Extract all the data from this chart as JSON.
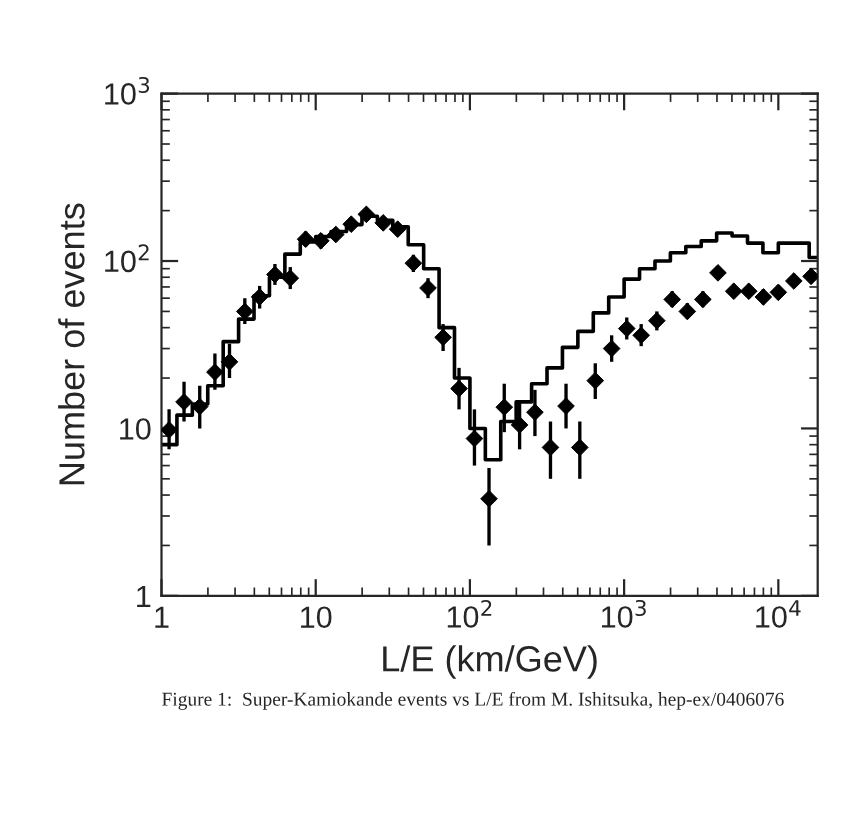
{
  "chart_data": {
    "type": "scatter",
    "xlabel": "L/E (km/GeV)",
    "ylabel": "Number of events",
    "log": "xy",
    "xlim": [
      1,
      18000
    ],
    "ylim": [
      1,
      1000
    ],
    "xticks": [
      1,
      10,
      {
        "value": 100,
        "label": "10$^{2}$"
      },
      {
        "value": 1000,
        "label": "10$^{3}$"
      },
      {
        "value": 10000,
        "label": "10$^{4}$"
      }
    ],
    "yticks": [
      1,
      10,
      {
        "value": 100,
        "label": "10$^{2}$"
      },
      {
        "value": 1000,
        "label": "10$^{3}$"
      }
    ],
    "marker": "diamond",
    "grid": false,
    "legend": false,
    "series": [
      {
        "color": "#000000",
        "x": [
          1.12,
          1.4,
          1.77,
          2.22,
          2.76,
          3.47,
          4.33,
          5.44,
          6.84,
          8.6,
          10.8,
          13.5,
          17,
          21.3,
          27.4,
          34,
          43,
          53.5,
          67,
          85,
          107,
          133,
          167,
          210,
          264,
          333,
          420,
          516,
          650,
          830,
          1040,
          1290,
          1630,
          2050,
          2570,
          3240,
          4060,
          5140,
          6430,
          8000,
          10000,
          12600,
          16300
        ],
        "values": [
          9.8,
          14.4,
          13.5,
          21.7,
          25,
          50,
          61,
          83,
          79,
          135,
          132,
          144,
          166,
          190,
          169,
          155,
          97,
          69,
          35,
          17.3,
          8.7,
          3.8,
          13.4,
          10.5,
          12.5,
          7.7,
          13.6,
          7.7,
          19.3,
          30,
          39.5,
          36,
          44,
          59,
          50,
          59,
          85,
          66,
          66,
          61,
          65,
          76,
          81
        ],
        "errors": [
          [
            7.5,
            13
          ],
          [
            11,
            19
          ],
          [
            10,
            18
          ],
          [
            17,
            28
          ],
          [
            20,
            32
          ],
          [
            42,
            60
          ],
          [
            52,
            71
          ],
          [
            72,
            96
          ],
          [
            68,
            92
          ],
          [
            122,
            150
          ],
          [
            119,
            146
          ],
          [
            131,
            158
          ],
          [
            152,
            181
          ],
          [
            175,
            206
          ],
          [
            155,
            184
          ],
          [
            142,
            169
          ],
          [
            86,
            109
          ],
          [
            60,
            79
          ],
          [
            29,
            42
          ],
          [
            13,
            23
          ],
          [
            6,
            13
          ],
          [
            2,
            5.8
          ],
          [
            9.5,
            18.5
          ],
          [
            7.5,
            14.5
          ],
          [
            9,
            17
          ],
          [
            5,
            11
          ],
          [
            10,
            18.5
          ],
          [
            5,
            11
          ],
          [
            15,
            24.5
          ],
          [
            25,
            36
          ],
          [
            34,
            46
          ],
          [
            31,
            42
          ],
          [
            38.5,
            50
          ],
          [
            53,
            66
          ],
          [
            45,
            56
          ],
          [
            53,
            66
          ],
          [
            78,
            93
          ],
          [
            60,
            73
          ],
          [
            60,
            73
          ],
          [
            55,
            68
          ],
          [
            59,
            72
          ],
          [
            69,
            84
          ],
          [
            74,
            89
          ]
        ]
      },
      {
        "type": "step",
        "color": "#000000",
        "marker": "none",
        "x": [
          1,
          1.259,
          1.585,
          1.995,
          2.512,
          3.162,
          3.981,
          5.012,
          6.31,
          7.943,
          10,
          12.59,
          15.85,
          19.95,
          25.12,
          31.62,
          39.81,
          50.12,
          63.1,
          79.43,
          100,
          125.9,
          158.5,
          199.5,
          251.2,
          316.2,
          398.1,
          501.2,
          631,
          794.3,
          1000,
          1259,
          1585,
          1995,
          2512,
          3162,
          3981,
          5012,
          6310,
          7943,
          10000,
          12590,
          15850,
          18000
        ],
        "values": [
          8,
          12,
          14,
          18,
          33,
          45,
          62,
          80,
          110,
          130,
          140,
          150,
          165,
          185,
          175,
          160,
          125,
          90,
          40,
          20,
          10,
          6.5,
          11,
          14.4,
          18.5,
          23,
          30.5,
          38,
          49,
          61,
          78,
          90,
          100,
          112,
          122,
          132,
          147,
          141,
          128,
          112,
          128,
          128,
          105,
          105
        ]
      }
    ],
    "annotations": [
      "Figure 1:  Super-Kamiokande events vs L/E from M. Ishitsuka, hep-ex/0406076"
    ]
  }
}
